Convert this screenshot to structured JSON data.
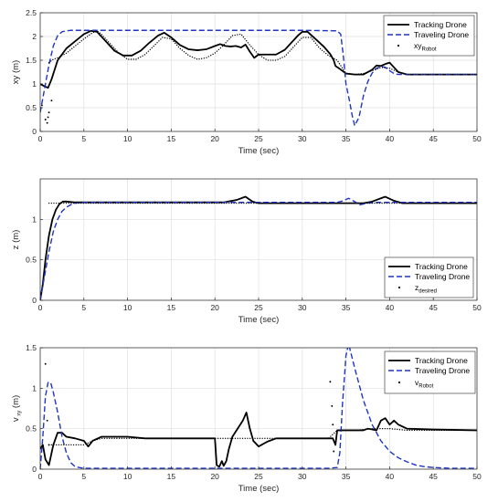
{
  "chart_data": [
    {
      "type": "line",
      "xlabel": "Time (sec)",
      "ylabel": "xy (m)",
      "xlim": [
        0,
        50
      ],
      "ylim": [
        0,
        2.5
      ],
      "xticks": [
        "0",
        "5",
        "10",
        "15",
        "20",
        "25",
        "30",
        "35",
        "40",
        "45",
        "50"
      ],
      "yticks": [
        "0",
        "0.5",
        "1",
        "1.5",
        "2",
        "2.5"
      ],
      "grid": true,
      "legend_position": "top-right",
      "legend": [
        {
          "label": "Tracking Drone",
          "style": "solid-black"
        },
        {
          "label": "Traveling Drone",
          "style": "dashed-blue"
        },
        {
          "label": "xy",
          "sub": "Robot",
          "style": "dots-black"
        }
      ],
      "series": [
        {
          "name": "Tracking Drone",
          "color": "#000000",
          "dash": "solid",
          "width": 1.8,
          "x": [
            0,
            0.5,
            0.9,
            1.3,
            2,
            3,
            4,
            5,
            5.8,
            6.5,
            7.5,
            8.5,
            9.5,
            10.5,
            11.5,
            12.5,
            13.5,
            14.2,
            15,
            16,
            17,
            18,
            19,
            20,
            20.6,
            21.2,
            21.8,
            22.4,
            23,
            23.5,
            24,
            24.5,
            25,
            26,
            27,
            28,
            28.8,
            29.5,
            30,
            30.6,
            31.5,
            32.5,
            33.2,
            33.6,
            33.8,
            34.2,
            35,
            36,
            37,
            38,
            38.5,
            39,
            39.5,
            40,
            40.5,
            41,
            42,
            43,
            45,
            47,
            50
          ],
          "y": [
            1,
            0.95,
            0.92,
            1.1,
            1.5,
            1.75,
            1.9,
            2.05,
            2.12,
            2.1,
            1.9,
            1.7,
            1.6,
            1.6,
            1.7,
            1.87,
            2.02,
            2.08,
            1.98,
            1.82,
            1.73,
            1.71,
            1.73,
            1.8,
            1.84,
            1.8,
            1.79,
            1.8,
            1.77,
            1.83,
            1.68,
            1.55,
            1.62,
            1.62,
            1.62,
            1.72,
            1.88,
            2.02,
            2.1,
            2.1,
            1.95,
            1.78,
            1.63,
            1.5,
            1.38,
            1.33,
            1.22,
            1.2,
            1.2,
            1.3,
            1.39,
            1.38,
            1.42,
            1.45,
            1.35,
            1.25,
            1.2,
            1.2,
            1.2,
            1.2,
            1.2
          ]
        },
        {
          "name": "Traveling Drone",
          "color": "#1f35c4",
          "dash": "dashed",
          "width": 1.4,
          "x": [
            0,
            0.5,
            1,
            1.5,
            2,
            2.5,
            3,
            3.5,
            4,
            5,
            10,
            20,
            30,
            34,
            34.4,
            34.7,
            35,
            35.4,
            35.7,
            36,
            36.5,
            37,
            37.5,
            38,
            38.5,
            39,
            39.5,
            40,
            40.5,
            41,
            42,
            43,
            45,
            50
          ],
          "y": [
            0.4,
            0.9,
            1.4,
            1.8,
            2.02,
            2.1,
            2.12,
            2.13,
            2.13,
            2.13,
            2.13,
            2.13,
            2.13,
            2.12,
            2.05,
            1.6,
            1.0,
            0.65,
            0.35,
            0.12,
            0.3,
            0.75,
            1.05,
            1.23,
            1.33,
            1.37,
            1.35,
            1.28,
            1.22,
            1.2,
            1.2,
            1.2,
            1.2,
            1.2
          ]
        },
        {
          "name": "xy_Robot",
          "color": "#000000",
          "dash": "dots",
          "width": 1.3,
          "x": [
            1,
            1.5,
            2,
            3,
            4,
            5,
            6,
            6.5,
            7,
            8,
            9,
            10,
            11,
            12,
            13,
            14,
            15,
            16,
            17,
            18,
            19,
            20,
            21,
            22,
            23,
            24,
            25,
            26,
            27,
            28,
            29,
            30,
            31,
            32,
            33,
            33.5,
            34,
            35,
            36,
            37,
            38,
            39,
            40,
            41,
            42,
            45,
            50
          ],
          "y": [
            1.45,
            1.52,
            1.55,
            1.65,
            1.8,
            1.95,
            2.08,
            2.12,
            2.05,
            1.85,
            1.65,
            1.52,
            1.52,
            1.62,
            1.8,
            1.98,
            1.95,
            1.75,
            1.6,
            1.52,
            1.55,
            1.65,
            1.82,
            2.02,
            2.05,
            1.82,
            1.62,
            1.5,
            1.5,
            1.58,
            1.78,
            1.98,
            1.98,
            1.75,
            1.6,
            1.55,
            1.5,
            1.22,
            1.2,
            1.22,
            1.28,
            1.35,
            1.33,
            1.25,
            1.2,
            1.2,
            1.2
          ]
        },
        {
          "name": "xy_Robot_scatter",
          "color": "#000000",
          "dash": "points",
          "width": 1.3,
          "x": [
            0.2,
            0.6,
            0.8,
            0.9,
            1.0,
            1.3
          ],
          "y": [
            0.55,
            0.25,
            0.18,
            0.3,
            0.4,
            0.65
          ]
        }
      ]
    },
    {
      "type": "line",
      "xlabel": "Time (sec)",
      "ylabel": "z (m)",
      "xlim": [
        0,
        50
      ],
      "ylim": [
        0,
        1.5
      ],
      "xticks": [
        "0",
        "5",
        "10",
        "15",
        "20",
        "25",
        "30",
        "35",
        "40",
        "45",
        "50"
      ],
      "yticks": [
        "0",
        "0.5",
        "1"
      ],
      "grid": true,
      "legend_position": "bottom-right",
      "legend": [
        {
          "label": "Tracking Drone",
          "style": "solid-black"
        },
        {
          "label": "Traveling Drone",
          "style": "dashed-blue"
        },
        {
          "label": "z",
          "sub": "desired",
          "style": "dots-black"
        }
      ],
      "series": [
        {
          "name": "Tracking Drone",
          "color": "#000000",
          "dash": "solid",
          "width": 1.8,
          "x": [
            0,
            0.3,
            0.6,
            1,
            1.4,
            1.8,
            2.2,
            2.6,
            3,
            4,
            10,
            21,
            22.5,
            23.5,
            24.3,
            25,
            30,
            35,
            37,
            38,
            39,
            39.5,
            40.5,
            41.5,
            43,
            50
          ],
          "y": [
            0,
            0.2,
            0.5,
            0.8,
            1.0,
            1.12,
            1.19,
            1.22,
            1.22,
            1.21,
            1.21,
            1.21,
            1.24,
            1.28,
            1.22,
            1.2,
            1.2,
            1.2,
            1.2,
            1.22,
            1.26,
            1.28,
            1.23,
            1.2,
            1.2,
            1.2
          ]
        },
        {
          "name": "Traveling Drone",
          "color": "#1f35c4",
          "dash": "dashed",
          "width": 1.4,
          "x": [
            0,
            0.5,
            1,
            1.5,
            2,
            2.5,
            3,
            3.5,
            4,
            5,
            10,
            20,
            30,
            34,
            34.7,
            35.3,
            36,
            36.6,
            37.5,
            38.5,
            40,
            45,
            50
          ],
          "y": [
            0,
            0.3,
            0.6,
            0.85,
            1.0,
            1.1,
            1.15,
            1.18,
            1.2,
            1.21,
            1.21,
            1.21,
            1.21,
            1.21,
            1.23,
            1.26,
            1.22,
            1.18,
            1.2,
            1.21,
            1.21,
            1.21,
            1.21
          ]
        },
        {
          "name": "z_desired",
          "color": "#000000",
          "dash": "dots",
          "width": 1.3,
          "x": [
            1,
            5,
            10,
            15,
            20,
            25,
            30,
            35,
            40,
            45,
            50
          ],
          "y": [
            1.2,
            1.2,
            1.2,
            1.2,
            1.2,
            1.2,
            1.2,
            1.2,
            1.2,
            1.2,
            1.2
          ]
        }
      ]
    },
    {
      "type": "line",
      "xlabel": "Time (sec)",
      "ylabel": "v",
      "ylabel_sub": "xy",
      "ylabel_unit": "(m)",
      "xlim": [
        0,
        50
      ],
      "ylim": [
        0,
        1.5
      ],
      "xticks": [
        "0",
        "5",
        "10",
        "15",
        "20",
        "25",
        "30",
        "35",
        "40",
        "45",
        "50"
      ],
      "yticks": [
        "0",
        "0.5",
        "1",
        "1.5"
      ],
      "grid": true,
      "legend_position": "top-right",
      "legend": [
        {
          "label": "Tracking Drone",
          "style": "solid-black"
        },
        {
          "label": "Traveling Drone",
          "style": "dashed-blue"
        },
        {
          "label": "v",
          "sub": "Robot",
          "style": "dots-black"
        }
      ],
      "series": [
        {
          "name": "Tracking Drone",
          "color": "#000000",
          "dash": "solid",
          "width": 1.8,
          "x": [
            0,
            0.3,
            0.6,
            1,
            1.5,
            2,
            2.5,
            3,
            4,
            5,
            5.5,
            6,
            7,
            8,
            10,
            12,
            14,
            16,
            18,
            20,
            20.2,
            20.5,
            20.8,
            21,
            21.3,
            21.6,
            22,
            22.6,
            23.2,
            23.6,
            24,
            24.4,
            25,
            26,
            27,
            28,
            30,
            32,
            33.5,
            33.8,
            34,
            34.5,
            35,
            36,
            37,
            37.5,
            38,
            38.5,
            39,
            39.5,
            40,
            40.5,
            41,
            42,
            45,
            50
          ],
          "y": [
            0.25,
            0.3,
            0.12,
            0.05,
            0.3,
            0.45,
            0.45,
            0.4,
            0.38,
            0.35,
            0.28,
            0.35,
            0.4,
            0.4,
            0.4,
            0.38,
            0.38,
            0.38,
            0.38,
            0.38,
            0.05,
            0.03,
            0.1,
            0.04,
            0.1,
            0.25,
            0.4,
            0.5,
            0.6,
            0.7,
            0.5,
            0.35,
            0.28,
            0.34,
            0.38,
            0.38,
            0.38,
            0.38,
            0.38,
            0.3,
            0.48,
            0.48,
            0.48,
            0.48,
            0.48,
            0.5,
            0.49,
            0.48,
            0.6,
            0.63,
            0.55,
            0.6,
            0.55,
            0.5,
            0.49,
            0.48
          ]
        },
        {
          "name": "Traveling Drone",
          "color": "#1f35c4",
          "dash": "dashed",
          "width": 1.4,
          "x": [
            0,
            0.3,
            0.6,
            0.9,
            1.2,
            1.5,
            2,
            2.5,
            3,
            3.5,
            4,
            5,
            10,
            20,
            30,
            33,
            34,
            34.3,
            34.6,
            35,
            35.3,
            36,
            37,
            38,
            39,
            40,
            41,
            42,
            43,
            44,
            45,
            47,
            50
          ],
          "y": [
            0,
            0.4,
            0.9,
            1.07,
            1.07,
            0.95,
            0.7,
            0.4,
            0.2,
            0.08,
            0.03,
            0.01,
            0.01,
            0.01,
            0.01,
            0.01,
            0.02,
            0.2,
            0.8,
            1.4,
            1.55,
            1.25,
            0.85,
            0.55,
            0.35,
            0.22,
            0.14,
            0.09,
            0.05,
            0.03,
            0.02,
            0.01,
            0.01
          ]
        },
        {
          "name": "v_Robot",
          "color": "#000000",
          "dash": "dots",
          "width": 1.3,
          "x": [
            1,
            2,
            3,
            4,
            5,
            6,
            7,
            8,
            9,
            10,
            12,
            14,
            16,
            18,
            20,
            22,
            24,
            26,
            28,
            30,
            32,
            33,
            34,
            36,
            38,
            40,
            42,
            45,
            50
          ],
          "y": [
            0.3,
            0.3,
            0.3,
            0.3,
            0.3,
            0.35,
            0.38,
            0.38,
            0.38,
            0.38,
            0.38,
            0.38,
            0.38,
            0.38,
            0.38,
            0.38,
            0.38,
            0.38,
            0.38,
            0.38,
            0.38,
            0.38,
            0.48,
            0.48,
            0.5,
            0.5,
            0.48,
            0.48,
            0.48
          ]
        },
        {
          "name": "v_Robot_scatter",
          "color": "#000000",
          "dash": "points",
          "width": 1.3,
          "x": [
            0.6,
            0.8,
            1.0,
            33.2,
            33.4,
            33.5,
            33.6
          ],
          "y": [
            1.3,
            0.6,
            0.3,
            1.08,
            0.78,
            0.55,
            0.22
          ]
        }
      ]
    }
  ]
}
